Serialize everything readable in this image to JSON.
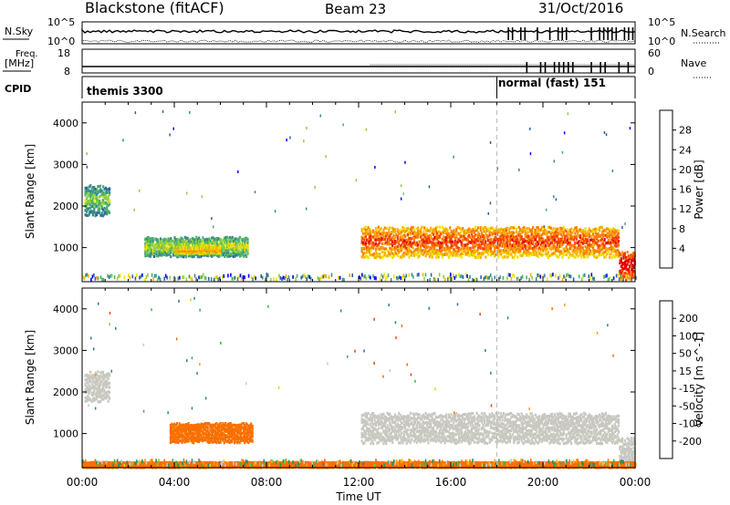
{
  "header": {
    "station_title": "Blackstone (fitACF)",
    "beam_label": "Beam 23",
    "date_label": "31/Oct/2016"
  },
  "strips": {
    "nsky_label": "N.Sky",
    "nsky_ticks_left": [
      "10^5",
      "10^0"
    ],
    "nsky_ticks_right": [
      "10^5",
      "10^0"
    ],
    "nsearch_label": "N.Search",
    "freq_label_1": "Freq.",
    "freq_label_2": "[MHz]",
    "freq_ticks": [
      "18",
      "8"
    ],
    "nave_ticks": [
      "60",
      "0"
    ],
    "nave_label": "Nave",
    "cpid_label": "CPID",
    "cpid_first": "themis 3300",
    "cpid_second": "normal (fast) 151",
    "cpid_switch_hour": 18.0
  },
  "axes": {
    "ylabel": "Slant Range [km]",
    "yticks": [
      "4000",
      "3000",
      "2000",
      "1000"
    ],
    "xlabel": "Time UT",
    "xticks": [
      "00:00",
      "04:00",
      "08:00",
      "12:00",
      "16:00",
      "20:00",
      "00:00"
    ]
  },
  "power_colorbar": {
    "label": "Power [dB]",
    "ticks": [
      "28",
      "24",
      "20",
      "16",
      "12",
      "8",
      "4"
    ],
    "colors": [
      "#0000ff",
      "#2a5fa8",
      "#3a8a8a",
      "#4ab06a",
      "#8ad040",
      "#f0e000",
      "#f8b000",
      "#f88000",
      "#f84000",
      "#e00000"
    ]
  },
  "velocity_colorbar": {
    "label": "Velocity [m s^-1]",
    "ticks": [
      "200",
      "100",
      "50",
      "15",
      "-15",
      "-50",
      "-100",
      "-200"
    ],
    "colors": [
      "#2040c0",
      "#3070a0",
      "#2c8c60",
      "#40b040",
      "#80d040",
      "#c8c8c0",
      "#f0c820",
      "#f8a000",
      "#f87000",
      "#f04000",
      "#e00000"
    ]
  },
  "chart_data": [
    {
      "type": "heatmap",
      "title": "Power",
      "xlabel": "Time UT",
      "ylabel": "Slant Range [km]",
      "xlim_hours": [
        0,
        24
      ],
      "ylim_km": [
        180,
        4500
      ],
      "colorbar": "Power [dB]",
      "features": [
        {
          "t0": 0.1,
          "t1": 1.2,
          "r0": 1800,
          "r1": 2500,
          "level_db": 10
        },
        {
          "t0": 2.7,
          "t1": 7.2,
          "r0": 800,
          "r1": 1250,
          "level_db": 12
        },
        {
          "t0": 4.0,
          "t1": 6.0,
          "r0": 850,
          "r1": 1000,
          "level_db": 18
        },
        {
          "t0": 12.1,
          "t1": 23.3,
          "r0": 800,
          "r1": 1500,
          "level_db": 22
        },
        {
          "t0": 23.3,
          "t1": 24.0,
          "r0": 250,
          "r1": 900,
          "level_db": 26
        }
      ]
    },
    {
      "type": "heatmap",
      "title": "Velocity",
      "xlabel": "Time UT",
      "ylabel": "Slant Range [km]",
      "xlim_hours": [
        0,
        24
      ],
      "ylim_km": [
        180,
        4500
      ],
      "colorbar": "Velocity [m s^-1]",
      "features": [
        {
          "t0": 0.1,
          "t1": 1.2,
          "r0": 1800,
          "r1": 2500,
          "velocity": 0
        },
        {
          "t0": 3.8,
          "t1": 7.4,
          "r0": 800,
          "r1": 1250,
          "velocity": -60
        },
        {
          "t0": 12.1,
          "t1": 23.3,
          "r0": 800,
          "r1": 1500,
          "velocity": 0
        },
        {
          "t0": 23.3,
          "t1": 24.0,
          "r0": 250,
          "r1": 900,
          "velocity": 0
        },
        {
          "t0": 0.0,
          "t1": 24.0,
          "r0": 180,
          "r1": 300,
          "velocity": -60
        }
      ]
    }
  ]
}
